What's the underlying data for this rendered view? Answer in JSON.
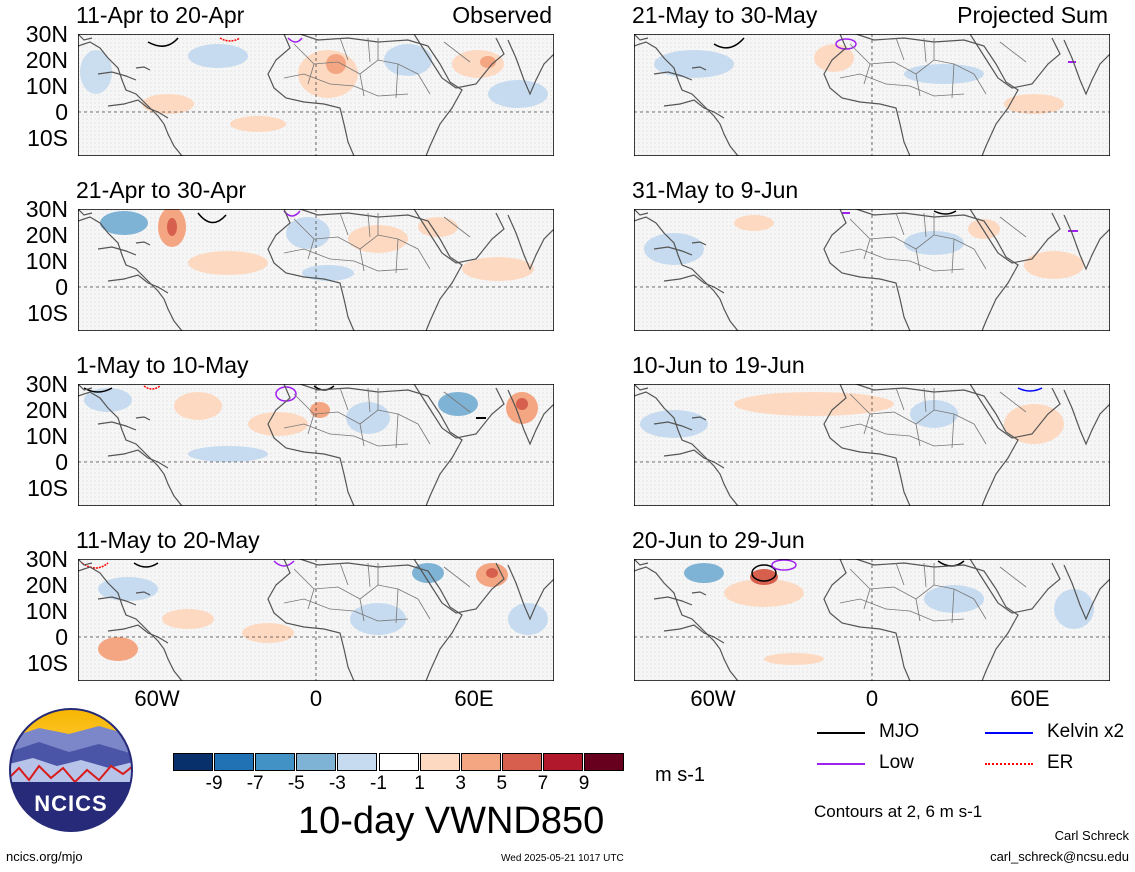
{
  "panels": [
    {
      "title": "11-Apr to 20-Apr",
      "tag": "Observed"
    },
    {
      "title": "21-Apr to 30-Apr",
      "tag": ""
    },
    {
      "title": "1-May to 10-May",
      "tag": ""
    },
    {
      "title": "11-May to 20-May",
      "tag": ""
    },
    {
      "title": "21-May to 30-May",
      "tag": "Projected Sum"
    },
    {
      "title": "31-May to 9-Jun",
      "tag": ""
    },
    {
      "title": "10-Jun to 19-Jun",
      "tag": ""
    },
    {
      "title": "20-Jun to 29-Jun",
      "tag": ""
    }
  ],
  "lat_labels": [
    "30N",
    "20N",
    "10N",
    "0",
    "10S"
  ],
  "lon_labels": [
    "60W",
    "0",
    "60E"
  ],
  "colorbar": {
    "colors": [
      "#08306b",
      "#2171b5",
      "#4292c6",
      "#7fb3d5",
      "#c6dbef",
      "#ffffff",
      "#fdd9c1",
      "#f4a582",
      "#d6604d",
      "#b2182b",
      "#67001f"
    ],
    "ticks": [
      "-9",
      "-7",
      "-5",
      "-3",
      "-1",
      "1",
      "3",
      "5",
      "7",
      "9"
    ],
    "units": "m s-1"
  },
  "main_title": "10-day VWND850",
  "legend": [
    {
      "label": "MJO",
      "color": "#000000"
    },
    {
      "label": "Kelvin x2",
      "color": "#0000ff"
    },
    {
      "label": "Low",
      "color": "#a020f0"
    },
    {
      "label": "ER",
      "color": "#ff0000"
    }
  ],
  "contour_note": "Contours at 2, 6 m s-1",
  "author": "Carl Schreck",
  "email": "carl_schreck@ncsu.edu",
  "site": "ncics.org/mjo",
  "timestamp": "Wed 2025-05-21 1017 UTC",
  "logo_text": "NCICS"
}
